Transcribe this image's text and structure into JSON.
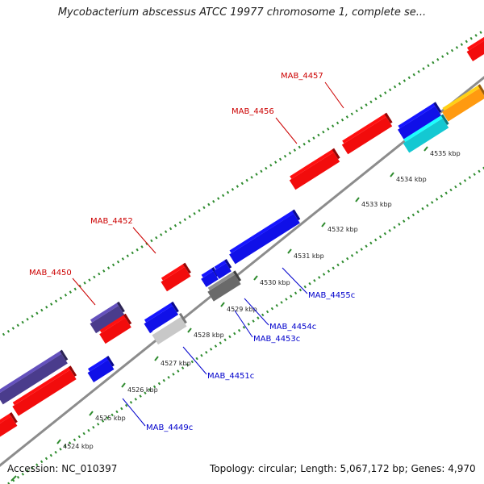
{
  "title": "Mycobacterium abscessus ATCC 19977 chromosome 1, complete se...",
  "footer": {
    "accession": "Accession: NC_010397",
    "summary": "Topology: circular; Length: 5,067,172 bp; Genes: 4,970"
  },
  "colors": {
    "backbone": "#8c8c8c",
    "tick": "#2e8b2e",
    "label_forward": "#cc0000",
    "label_reverse": "#0000cc",
    "red": "#f20c0c",
    "blue": "#1010e8",
    "purple": "#4a3c8c",
    "gray": "#c8c8c8",
    "darkgray": "#6a6a6a",
    "cyan": "#14c8d2",
    "orange": "#ff9a10"
  },
  "ticks": [
    "4524 kbp",
    "4525 kbp",
    "4526 kbp",
    "4527 kbp",
    "4528 kbp",
    "4529 kbp",
    "4530 kbp",
    "4531 kbp",
    "4532 kbp",
    "4533 kbp",
    "4534 kbp",
    "4535 kbp"
  ],
  "gene_labels": [
    {
      "id": "MAB_4450",
      "strand": "forward"
    },
    {
      "id": "MAB_4452",
      "strand": "forward"
    },
    {
      "id": "MAB_4456",
      "strand": "forward"
    },
    {
      "id": "MAB_4457",
      "strand": "forward"
    },
    {
      "id": "MAB_4449c",
      "strand": "reverse"
    },
    {
      "id": "MAB_4451c",
      "strand": "reverse"
    },
    {
      "id": "MAB_4453c",
      "strand": "reverse"
    },
    {
      "id": "MAB_4454c",
      "strand": "reverse"
    },
    {
      "id": "MAB_4455c",
      "strand": "reverse"
    }
  ],
  "features": [
    {
      "color": "purple"
    },
    {
      "color": "red"
    },
    {
      "color": "red"
    },
    {
      "color": "purple"
    },
    {
      "color": "red"
    },
    {
      "color": "red"
    },
    {
      "color": "red"
    },
    {
      "color": "red"
    },
    {
      "color": "red"
    },
    {
      "color": "blue"
    },
    {
      "color": "orange"
    },
    {
      "color": "blue"
    },
    {
      "color": "blue"
    },
    {
      "color": "gray"
    },
    {
      "color": "blue"
    },
    {
      "color": "blue"
    },
    {
      "color": "darkgray"
    },
    {
      "color": "blue"
    },
    {
      "color": "cyan"
    }
  ]
}
